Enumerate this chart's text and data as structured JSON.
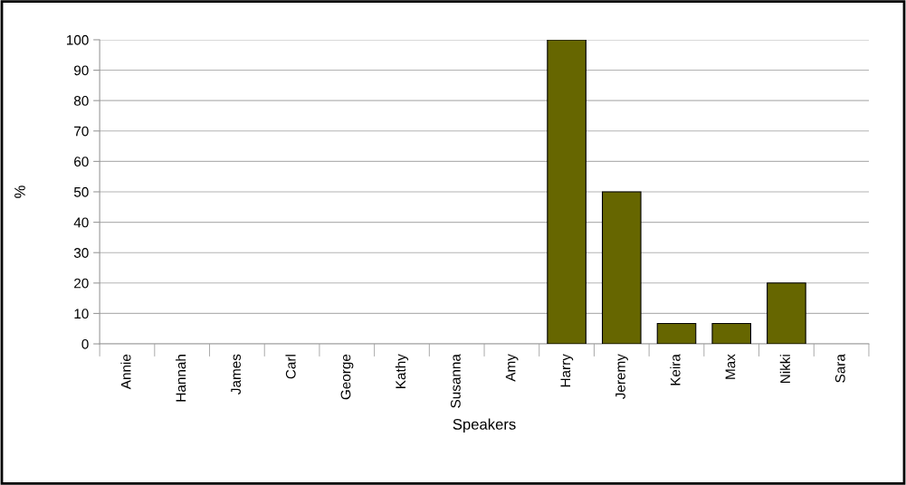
{
  "chart_data": {
    "type": "bar",
    "xlabel": "Speakers",
    "ylabel": "%",
    "categories": [
      "Annie",
      "Hannah",
      "James",
      "Carl",
      "George",
      "Kathy",
      "Susanna",
      "Amy",
      "Harry",
      "Jeremy",
      "Keira",
      "Max",
      "Nikki",
      "Sara"
    ],
    "values": [
      0,
      0,
      0,
      0,
      0,
      0,
      0,
      0,
      100,
      50,
      6.7,
      6.7,
      20,
      0
    ],
    "color": "#666600",
    "ylim": [
      0,
      100
    ],
    "yticks": [
      0,
      10,
      20,
      30,
      40,
      50,
      60,
      70,
      80,
      90,
      100
    ],
    "grid": "y"
  }
}
